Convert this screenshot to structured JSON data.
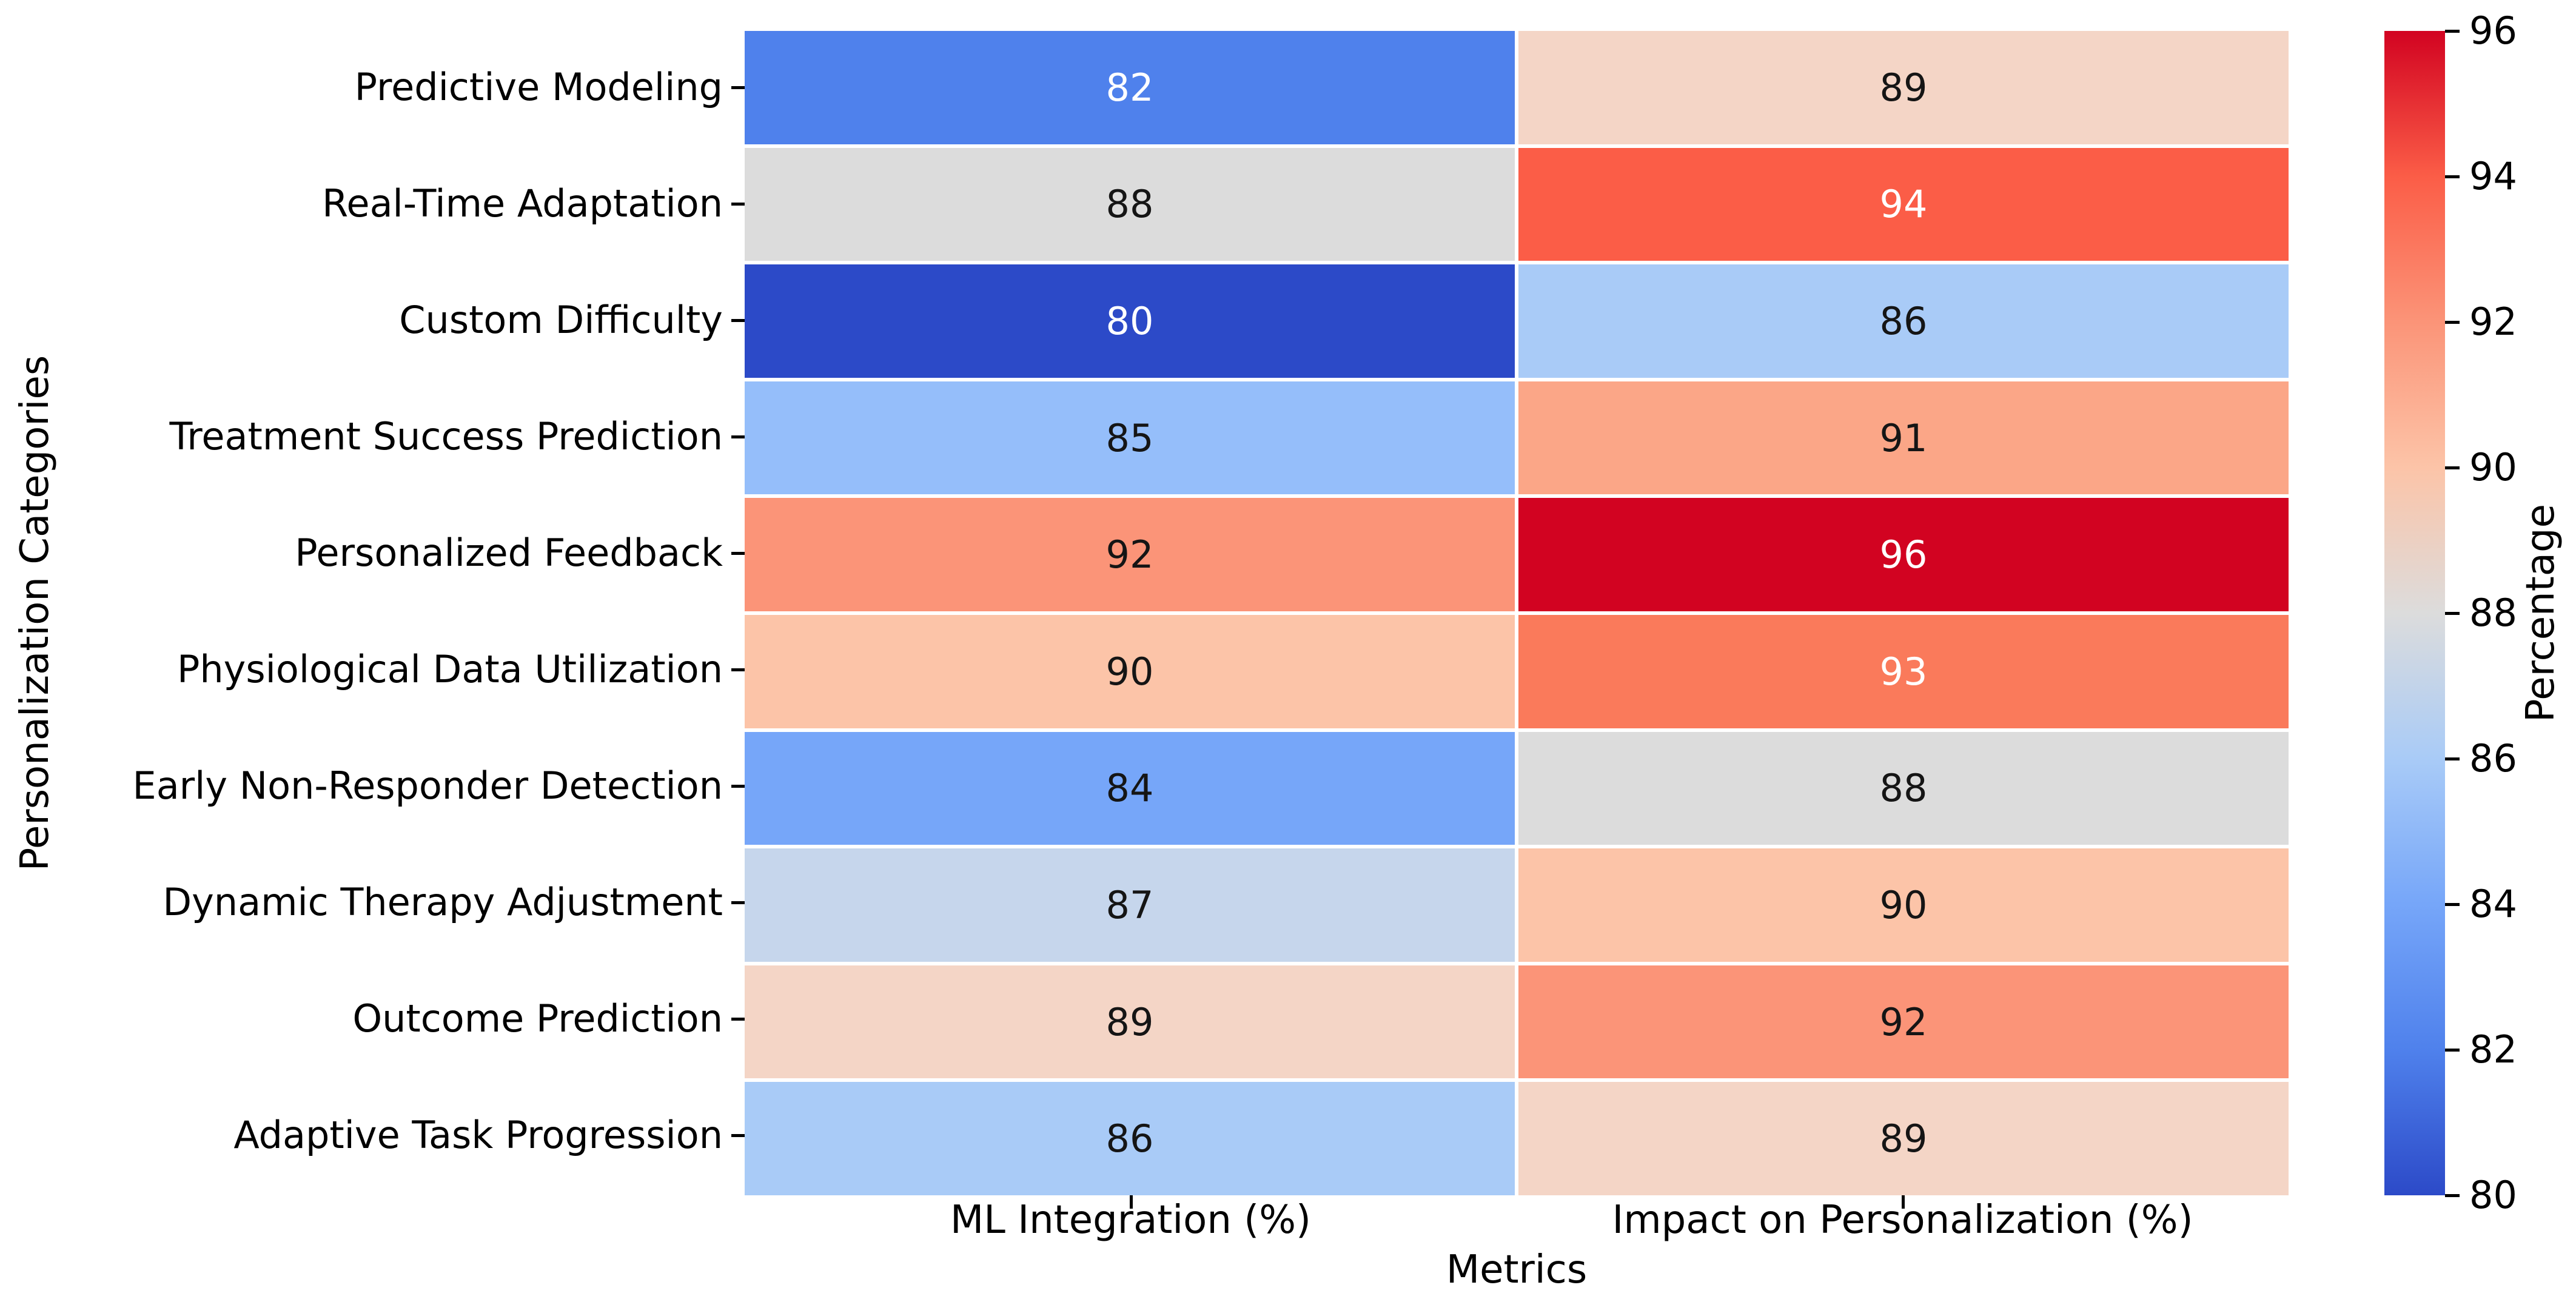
{
  "chart_data": {
    "type": "heatmap",
    "xlabel": "Metrics",
    "ylabel": "Personalization Categories",
    "columns": [
      "ML Integration (%)",
      "Impact on Personalization (%)"
    ],
    "rows": [
      "Predictive Modeling",
      "Real-Time Adaptation",
      "Custom Difficulty",
      "Treatment Success Prediction",
      "Personalized Feedback",
      "Physiological Data Utilization",
      "Early Non-Responder Detection",
      "Dynamic Therapy Adjustment",
      "Outcome Prediction",
      "Adaptive Task Progression"
    ],
    "series": [
      {
        "name": "Predictive Modeling",
        "values": [
          82,
          89
        ]
      },
      {
        "name": "Real-Time Adaptation",
        "values": [
          88,
          94
        ]
      },
      {
        "name": "Custom Difficulty",
        "values": [
          80,
          86
        ]
      },
      {
        "name": "Treatment Success Prediction",
        "values": [
          85,
          91
        ]
      },
      {
        "name": "Personalized Feedback",
        "values": [
          92,
          96
        ]
      },
      {
        "name": "Physiological Data Utilization",
        "values": [
          90,
          93
        ]
      },
      {
        "name": "Early Non-Responder Detection",
        "values": [
          84,
          88
        ]
      },
      {
        "name": "Dynamic Therapy Adjustment",
        "values": [
          87,
          90
        ]
      },
      {
        "name": "Outcome Prediction",
        "values": [
          89,
          92
        ]
      },
      {
        "name": "Adaptive Task Progression",
        "values": [
          86,
          89
        ]
      }
    ],
    "colorbar": {
      "label": "Percentage",
      "min": 80,
      "max": 96,
      "ticks": [
        96,
        94,
        92,
        90,
        88,
        86,
        84,
        82,
        80
      ]
    },
    "colormap_name": "coolwarm",
    "value_colors": {
      "80": "#2C4AC8",
      "82": "#4F81EC",
      "84": "#76A6F9",
      "85": "#95BEFA",
      "86": "#A9CBF7",
      "87": "#C6D6EC",
      "88": "#DCDCDC",
      "89": "#F4D5C6",
      "90": "#FCC4A8",
      "91": "#FBA687",
      "92": "#FB9478",
      "93": "#FA7A5B",
      "94": "#FB5D47",
      "96": "#D20321"
    },
    "white_text_values": [
      80,
      82,
      93,
      94,
      96
    ],
    "annotation_dark_text_color": "#151515",
    "annotation_light_text_color": "#FFFFFF",
    "grid_gap_color": "#FFFFFF",
    "legend_position": "right-colorbar"
  }
}
